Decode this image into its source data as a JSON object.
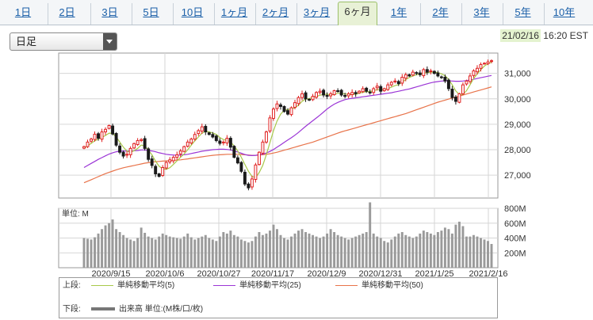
{
  "tabs": [
    {
      "label": "1日"
    },
    {
      "label": "2日"
    },
    {
      "label": "3日"
    },
    {
      "label": "5日"
    },
    {
      "label": "10日"
    },
    {
      "label": "1ヶ月"
    },
    {
      "label": "2ヶ月"
    },
    {
      "label": "3ヶ月"
    },
    {
      "label": "6ヶ月",
      "active": true
    },
    {
      "label": "1年"
    },
    {
      "label": "2年"
    },
    {
      "label": "3年"
    },
    {
      "label": "5年"
    },
    {
      "label": "10年"
    }
  ],
  "period_select": {
    "value": "日足"
  },
  "timestamp": {
    "date": "21/02/16",
    "time": "16:20 EST"
  },
  "colors": {
    "up": "#e02020",
    "down": "#1a1a1a",
    "ma5": "#a8c94a",
    "ma25": "#9b35d6",
    "ma50": "#e8734a",
    "volume": "#9a9a9a",
    "grid": "#d6d6d6"
  },
  "chart_data": [
    {
      "type": "candlestick",
      "price_ticks": [
        "31,000",
        "30,000",
        "29,000",
        "28,000",
        "27,000"
      ],
      "ylim": [
        26100,
        31800
      ],
      "x_tick_labels": [
        "2020/9/15",
        "2020/10/6",
        "2020/10/27",
        "2020/11/17",
        "2020/12/9",
        "2020/12/31",
        "2021/1/25",
        "2021/2/16"
      ],
      "close": [
        28120,
        28300,
        28420,
        28610,
        28450,
        28700,
        28800,
        28950,
        28620,
        28180,
        27900,
        27750,
        27820,
        28050,
        28240,
        28360,
        28400,
        28050,
        27620,
        27380,
        27050,
        26950,
        27300,
        27500,
        27600,
        27700,
        27800,
        27950,
        28120,
        28300,
        28420,
        28600,
        28750,
        28900,
        28700,
        28600,
        28500,
        28360,
        28250,
        28300,
        28450,
        28100,
        27700,
        27480,
        27150,
        26650,
        26500,
        26850,
        27400,
        27900,
        28300,
        28700,
        29250,
        29600,
        29800,
        29700,
        29500,
        29400,
        29650,
        29850,
        30050,
        30200,
        30000,
        29950,
        30100,
        30250,
        30300,
        30150,
        30100,
        30200,
        30320,
        30300,
        30150,
        30100,
        30200,
        30250,
        30200,
        30300,
        30400,
        30300,
        30250,
        30400,
        30500,
        30300,
        30400,
        30550,
        30650,
        30700,
        30600,
        30850,
        30950,
        30900,
        31050,
        31000,
        30950,
        31150,
        31050,
        31100,
        31000,
        30900,
        30850,
        30700,
        30400,
        30050,
        29900,
        30200,
        30550,
        30700,
        30900,
        31100,
        31200,
        31350,
        31400,
        31450,
        31500
      ],
      "ma5": [
        28050,
        28150,
        28250,
        28350,
        28420,
        28480,
        28560,
        28650,
        28640,
        28500,
        28300,
        28100,
        27950,
        27900,
        27960,
        28050,
        28180,
        28150,
        27980,
        27800,
        27550,
        27350,
        27250,
        27230,
        27290,
        27420,
        27560,
        27700,
        27830,
        28000,
        28180,
        28350,
        28500,
        28650,
        28720,
        28700,
        28660,
        28600,
        28480,
        28400,
        28370,
        28300,
        28150,
        27950,
        27700,
        27420,
        27150,
        26950,
        26900,
        27100,
        27380,
        27800,
        28280,
        28750,
        29130,
        29400,
        29550,
        29580,
        29600,
        29650,
        29750,
        29900,
        29990,
        30010,
        30060,
        30100,
        30140,
        30170,
        30180,
        30160,
        30180,
        30220,
        30220,
        30190,
        30180,
        30170,
        30180,
        30220,
        30260,
        30280,
        30290,
        30320,
        30360,
        30360,
        30370,
        30400,
        30460,
        30520,
        30560,
        30650,
        30760,
        30840,
        30900,
        30950,
        30980,
        31010,
        31030,
        31050,
        31050,
        31030,
        30980,
        30910,
        30770,
        30550,
        30310,
        30170,
        30170,
        30320,
        30550,
        30800,
        30980,
        31150,
        31290,
        31380,
        31440
      ],
      "ma25": [
        27300,
        27380,
        27460,
        27540,
        27620,
        27690,
        27760,
        27830,
        27880,
        27920,
        27940,
        27950,
        27950,
        27950,
        27960,
        27970,
        27990,
        27990,
        27970,
        27950,
        27920,
        27880,
        27850,
        27820,
        27800,
        27790,
        27780,
        27790,
        27800,
        27820,
        27850,
        27880,
        27910,
        27940,
        27960,
        27980,
        28000,
        28010,
        28020,
        28020,
        28010,
        27990,
        27950,
        27910,
        27860,
        27810,
        27780,
        27770,
        27780,
        27800,
        27830,
        27870,
        27930,
        28010,
        28100,
        28190,
        28290,
        28380,
        28470,
        28570,
        28680,
        28800,
        28920,
        29030,
        29140,
        29250,
        29360,
        29480,
        29600,
        29700,
        29790,
        29860,
        29920,
        29970,
        30000,
        30020,
        30040,
        30060,
        30080,
        30100,
        30120,
        30140,
        30160,
        30180,
        30200,
        30220,
        30240,
        30270,
        30300,
        30330,
        30360,
        30390,
        30430,
        30470,
        30510,
        30550,
        30590,
        30630,
        30660,
        30680,
        30700,
        30710,
        30710,
        30700,
        30690,
        30690,
        30700,
        30720,
        30740,
        30770,
        30800,
        30830,
        30860,
        30890,
        30920
      ],
      "ma50": [
        26700,
        26760,
        26820,
        26880,
        26940,
        27000,
        27060,
        27110,
        27160,
        27210,
        27250,
        27290,
        27320,
        27350,
        27380,
        27410,
        27440,
        27470,
        27490,
        27510,
        27530,
        27540,
        27550,
        27560,
        27570,
        27580,
        27590,
        27600,
        27620,
        27640,
        27660,
        27680,
        27700,
        27720,
        27740,
        27760,
        27780,
        27790,
        27800,
        27810,
        27820,
        27820,
        27820,
        27820,
        27810,
        27800,
        27790,
        27780,
        27780,
        27790,
        27800,
        27820,
        27840,
        27870,
        27900,
        27940,
        27980,
        28020,
        28060,
        28100,
        28140,
        28180,
        28220,
        28260,
        28300,
        28350,
        28400,
        28450,
        28500,
        28550,
        28600,
        28650,
        28700,
        28740,
        28780,
        28820,
        28860,
        28900,
        28940,
        28980,
        29020,
        29060,
        29100,
        29140,
        29180,
        29220,
        29260,
        29300,
        29340,
        29380,
        29420,
        29470,
        29520,
        29570,
        29620,
        29670,
        29720,
        29770,
        29820,
        29870,
        29910,
        29950,
        29990,
        30030,
        30070,
        30110,
        30150,
        30190,
        30230,
        30270,
        30310,
        30350,
        30390,
        30430,
        30470
      ],
      "series_names": [
        "単純移動平均(5)",
        "単純移動平均(25)",
        "単純移動平均(50)"
      ]
    },
    {
      "type": "bar",
      "unit_label": "単位: M",
      "volume_ticks": [
        "800M",
        "600M",
        "400M",
        "200M"
      ],
      "ylim": [
        0,
        800
      ],
      "volume": [
        400,
        390,
        380,
        410,
        460,
        520,
        570,
        600,
        650,
        520,
        480,
        440,
        400,
        380,
        360,
        400,
        540,
        470,
        420,
        400,
        380,
        420,
        460,
        440,
        420,
        410,
        400,
        390,
        420,
        460,
        410,
        380,
        400,
        420,
        440,
        400,
        380,
        360,
        420,
        480,
        460,
        500,
        440,
        420,
        380,
        360,
        340,
        360,
        420,
        480,
        440,
        460,
        500,
        580,
        520,
        440,
        400,
        380,
        420,
        460,
        500,
        520,
        480,
        460,
        440,
        420,
        400,
        420,
        460,
        520,
        480,
        440,
        420,
        400,
        380,
        400,
        420,
        440,
        460,
        480,
        880,
        460,
        420,
        400,
        360,
        340,
        380,
        420,
        460,
        480,
        440,
        420,
        400,
        420,
        460,
        500,
        480,
        460,
        440,
        480,
        500,
        540,
        520,
        460,
        580,
        620,
        560,
        420,
        420,
        440,
        420,
        400,
        380,
        360,
        320
      ]
    }
  ],
  "legend": {
    "upper_label": "上段:",
    "lower_label": "下段:",
    "ma5_label": "単純移動平均(5)",
    "ma25_label": "単純移動平均(25)",
    "ma50_label": "単純移動平均(50)",
    "volume_label": "出来高 単位:(M株/口/枚)"
  }
}
